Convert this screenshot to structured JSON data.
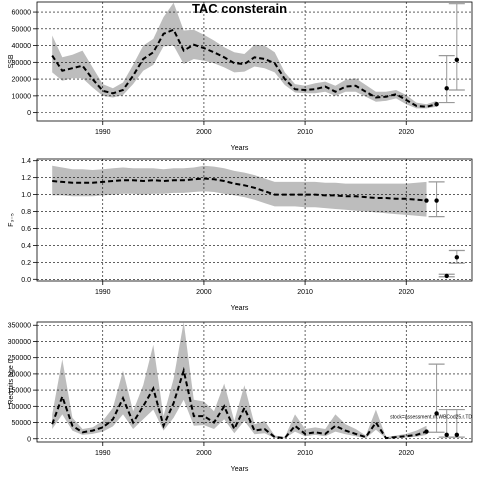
{
  "chart_data": [
    {
      "type": "line",
      "title": "TAC consterain",
      "xlabel": "Years",
      "ylabel": "SSB",
      "xlim": [
        1983.5,
        2026.5
      ],
      "ylim": [
        -5000,
        66000
      ],
      "x_ticks": [
        1990,
        2000,
        2010,
        2020
      ],
      "y_ticks": [
        0,
        10000,
        20000,
        30000,
        40000,
        50000,
        60000
      ],
      "grid": true,
      "x": [
        1985,
        1986,
        1987,
        1988,
        1989,
        1990,
        1991,
        1992,
        1993,
        1994,
        1995,
        1996,
        1997,
        1998,
        1999,
        2000,
        2001,
        2002,
        2003,
        2004,
        2005,
        2006,
        2007,
        2008,
        2009,
        2010,
        2011,
        2012,
        2013,
        2014,
        2015,
        2016,
        2017,
        2018,
        2019,
        2020,
        2021,
        2022,
        2023
      ],
      "series": [
        {
          "values": [
            34000,
            25000,
            26500,
            28000,
            20000,
            13000,
            11500,
            13500,
            22000,
            32000,
            36000,
            47000,
            49500,
            37000,
            40500,
            38500,
            36000,
            33000,
            29500,
            29000,
            33000,
            32000,
            29500,
            20000,
            14000,
            13500,
            14000,
            15500,
            12500,
            15500,
            16000,
            12500,
            9000,
            9500,
            11000,
            7500,
            4000,
            3500,
            5000
          ]
        },
        {
          "name": "upper",
          "values": [
            46000,
            33000,
            34500,
            37000,
            27000,
            17000,
            14500,
            18000,
            28500,
            40000,
            44000,
            57000,
            65500,
            49000,
            49500,
            46500,
            43000,
            39000,
            36000,
            35000,
            40500,
            40000,
            36000,
            24000,
            17000,
            16000,
            17500,
            18500,
            16000,
            19500,
            20500,
            16500,
            12500,
            12500,
            13500,
            10500,
            6000,
            5000,
            7000
          ]
        },
        {
          "name": "lower",
          "values": [
            24000,
            19000,
            20500,
            20500,
            15000,
            10000,
            9000,
            10500,
            17000,
            25000,
            28500,
            39500,
            40000,
            29000,
            32000,
            31000,
            29500,
            27000,
            24000,
            24500,
            27500,
            26500,
            24000,
            16500,
            12000,
            11500,
            11500,
            12500,
            10000,
            12500,
            12500,
            9500,
            6500,
            7000,
            8500,
            5000,
            2500,
            2500,
            3500
          ]
        }
      ],
      "projection_points": [
        {
          "x": 2024,
          "y": 14500,
          "lower": 6000,
          "upper": 34000
        },
        {
          "x": 2025,
          "y": 31500,
          "lower": 13500,
          "upper": 65000
        }
      ]
    },
    {
      "type": "line",
      "xlabel": "Years",
      "ylabel": "F₃₋₅",
      "xlim": [
        1983.5,
        2026.5
      ],
      "ylim": [
        -0.02,
        1.42
      ],
      "x_ticks": [
        1990,
        2000,
        2010,
        2020
      ],
      "y_ticks": [
        0.0,
        0.2,
        0.4,
        0.6,
        0.8,
        1.0,
        1.2,
        1.4
      ],
      "y_tick_labels": [
        "0.0",
        "0.2",
        "0.4",
        "0.6",
        "0.8",
        "1.0",
        "1.2",
        "1.4"
      ],
      "grid": true,
      "x": [
        1985,
        1986,
        1987,
        1988,
        1989,
        1990,
        1991,
        1992,
        1993,
        1994,
        1995,
        1996,
        1997,
        1998,
        1999,
        2000,
        2001,
        2002,
        2003,
        2004,
        2005,
        2006,
        2007,
        2008,
        2009,
        2010,
        2011,
        2012,
        2013,
        2014,
        2015,
        2016,
        2017,
        2018,
        2019,
        2020,
        2021,
        2022
      ],
      "series": [
        {
          "values": [
            1.16,
            1.15,
            1.14,
            1.14,
            1.14,
            1.15,
            1.16,
            1.17,
            1.17,
            1.16,
            1.17,
            1.16,
            1.17,
            1.17,
            1.18,
            1.19,
            1.18,
            1.16,
            1.13,
            1.11,
            1.08,
            1.04,
            1.0,
            1.0,
            1.0,
            1.0,
            1.0,
            0.99,
            0.99,
            0.98,
            0.98,
            0.97,
            0.96,
            0.96,
            0.95,
            0.95,
            0.94,
            0.93
          ]
        },
        {
          "name": "upper",
          "values": [
            1.34,
            1.32,
            1.3,
            1.3,
            1.29,
            1.3,
            1.31,
            1.32,
            1.31,
            1.31,
            1.31,
            1.3,
            1.31,
            1.31,
            1.32,
            1.34,
            1.33,
            1.31,
            1.28,
            1.26,
            1.23,
            1.19,
            1.15,
            1.15,
            1.15,
            1.15,
            1.15,
            1.14,
            1.14,
            1.13,
            1.13,
            1.13,
            1.13,
            1.13,
            1.13,
            1.13,
            1.14,
            1.15
          ]
        },
        {
          "name": "lower",
          "values": [
            0.99,
            0.99,
            0.98,
            0.98,
            0.98,
            0.99,
            1.0,
            1.01,
            1.01,
            1.0,
            1.01,
            1.01,
            1.02,
            1.02,
            1.03,
            1.04,
            1.03,
            1.01,
            0.99,
            0.97,
            0.94,
            0.9,
            0.86,
            0.86,
            0.86,
            0.85,
            0.85,
            0.84,
            0.83,
            0.82,
            0.81,
            0.8,
            0.79,
            0.78,
            0.77,
            0.76,
            0.75,
            0.74
          ]
        }
      ],
      "projection_points": [
        {
          "x": 2023,
          "y": 0.93,
          "lower": 0.74,
          "upper": 1.15
        },
        {
          "x": 2024,
          "y": 0.04,
          "lower": 0.03,
          "upper": 0.06
        },
        {
          "x": 2025,
          "y": 0.26,
          "lower": 0.19,
          "upper": 0.34
        }
      ]
    },
    {
      "type": "line",
      "xlabel": "Years",
      "ylabel": "Recruits age 0",
      "xlim": [
        1983.5,
        2026.5
      ],
      "ylim": [
        -10000,
        360000
      ],
      "x_ticks": [
        1990,
        2000,
        2010,
        2020
      ],
      "y_ticks": [
        0,
        50000,
        100000,
        150000,
        200000,
        250000,
        300000,
        350000
      ],
      "grid": true,
      "x": [
        1985,
        1986,
        1987,
        1988,
        1989,
        1990,
        1991,
        1992,
        1993,
        1994,
        1995,
        1996,
        1997,
        1998,
        1999,
        2000,
        2001,
        2002,
        2003,
        2004,
        2005,
        2006,
        2007,
        2008,
        2009,
        2010,
        2011,
        2012,
        2013,
        2014,
        2015,
        2016,
        2017,
        2018,
        2019,
        2020,
        2021,
        2022
      ],
      "series": [
        {
          "values": [
            45000,
            130000,
            40000,
            20000,
            25000,
            35000,
            60000,
            125000,
            50000,
            100000,
            155000,
            40000,
            110000,
            210000,
            70000,
            70000,
            50000,
            100000,
            30000,
            95000,
            25000,
            30000,
            5000,
            2000,
            40000,
            15000,
            20000,
            15000,
            40000,
            25000,
            15000,
            5000,
            50000,
            2000,
            5000,
            8000,
            12000,
            22000
          ]
        },
        {
          "name": "upper",
          "values": [
            75000,
            245000,
            65000,
            30000,
            35000,
            55000,
            95000,
            210000,
            85000,
            165000,
            290000,
            70000,
            185000,
            360000,
            120000,
            115000,
            85000,
            170000,
            55000,
            165000,
            45000,
            55000,
            10000,
            5000,
            75000,
            30000,
            35000,
            30000,
            75000,
            45000,
            30000,
            10000,
            90000,
            5000,
            10000,
            15000,
            25000,
            40000
          ]
        },
        {
          "name": "lower",
          "values": [
            30000,
            75000,
            25000,
            12000,
            15000,
            22000,
            38000,
            75000,
            30000,
            60000,
            90000,
            25000,
            65000,
            120000,
            40000,
            42000,
            30000,
            60000,
            17000,
            55000,
            14000,
            17000,
            2000,
            1000,
            22000,
            8000,
            12000,
            8000,
            22000,
            14000,
            8000,
            2000,
            28000,
            1000,
            2000,
            4000,
            6000,
            12000
          ]
        }
      ],
      "projection_points": [
        {
          "x": 2023,
          "y": 78000,
          "lower": 20000,
          "upper": 230000
        },
        {
          "x": 2024,
          "y": 12000,
          "lower": 5000,
          "upper": 90000
        },
        {
          "x": 2025,
          "y": 12000,
          "lower": 5000,
          "upper": 90000
        }
      ],
      "annotation": "stock=assessment.m.WBCod25.r.TD"
    }
  ]
}
